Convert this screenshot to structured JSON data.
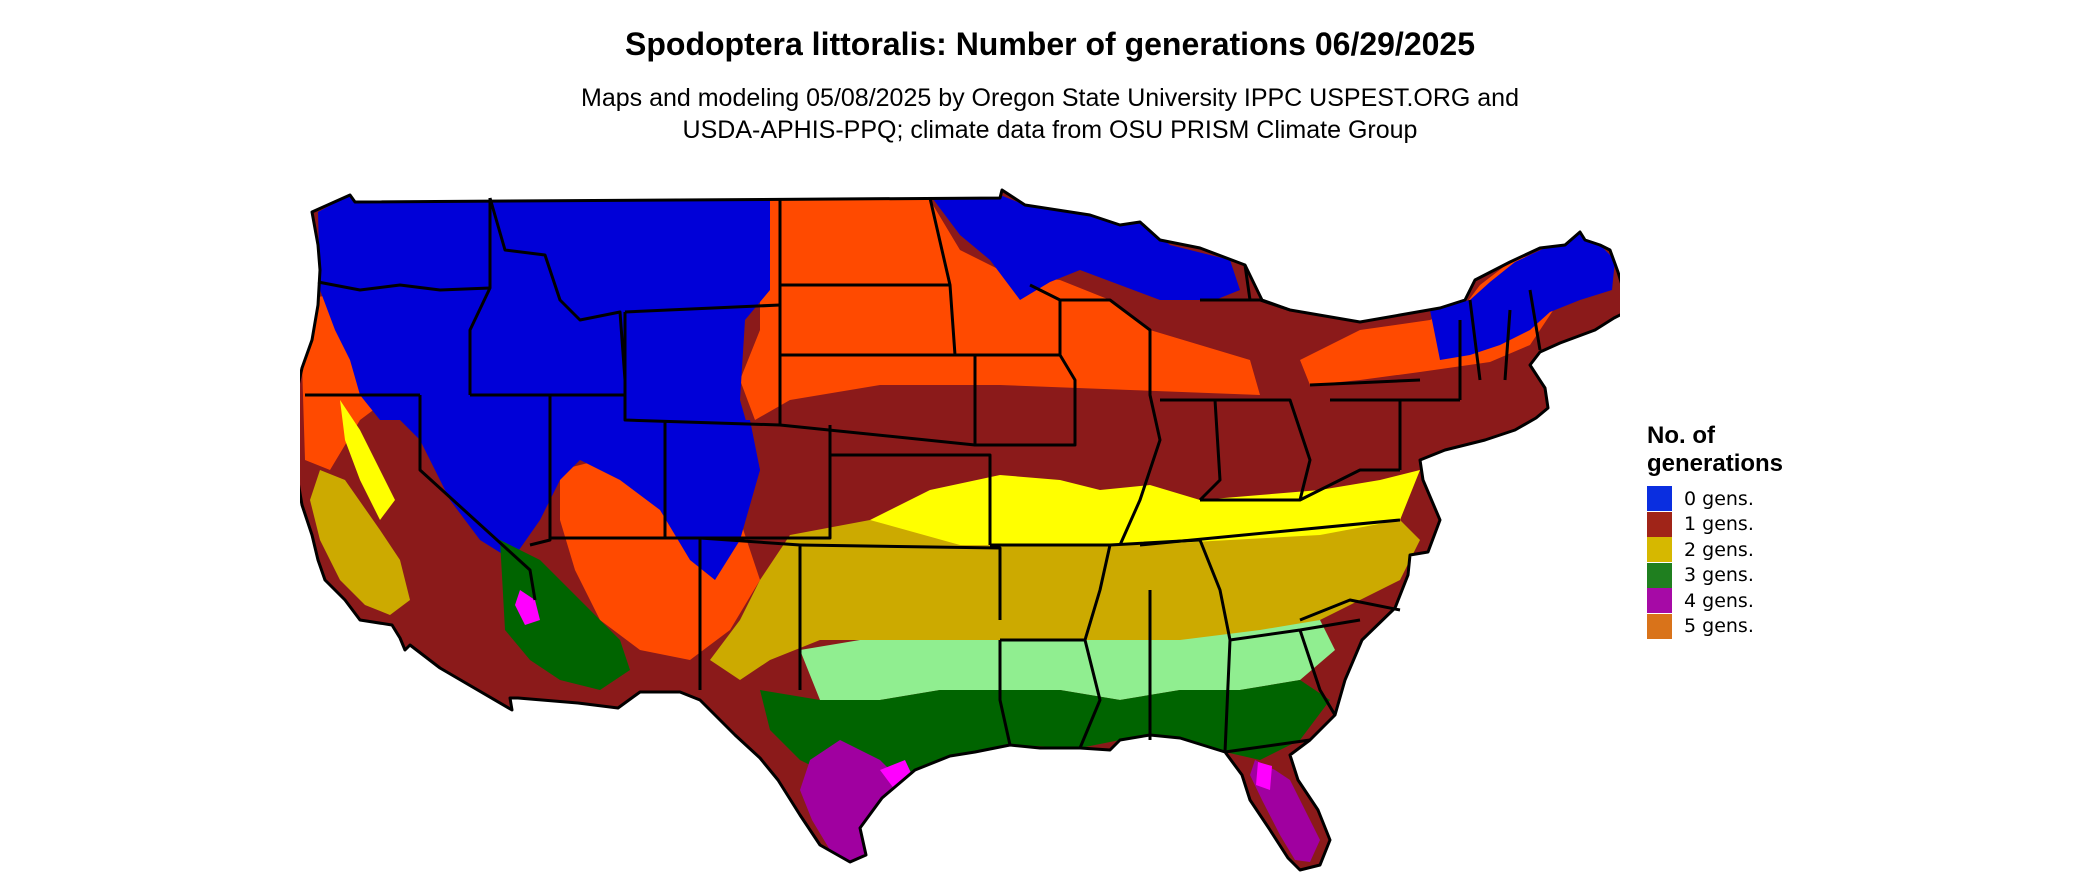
{
  "title": "Spodoptera littoralis: Number of generations 06/29/2025",
  "subtitle": {
    "line1": "Maps and modeling 05/08/2025 by Oregon State University IPPC USPEST.ORG and",
    "line2": "USDA-APHIS-PPQ; climate data from OSU PRISM Climate Group"
  },
  "legend": {
    "title_line1": "No. of",
    "title_line2": "generations",
    "items": [
      {
        "label": "0 gens.",
        "color": "#0a2ee0"
      },
      {
        "label": "1 gens.",
        "color": "#a02418"
      },
      {
        "label": "2 gens.",
        "color": "#d6b800"
      },
      {
        "label": "3 gens.",
        "color": "#1f7f1f"
      },
      {
        "label": "4 gens.",
        "color": "#a60aa6"
      },
      {
        "label": "5 gens.",
        "color": "#d9731a"
      }
    ]
  },
  "map_colors": {
    "zero_gens": "#0000d8",
    "one_gen_early": "#ff4a00",
    "one_gen": "#8b1a1a",
    "two_gens_light": "#ffff00",
    "two_gens": "#ccaa00",
    "three_gens_light": "#90ee90",
    "three_gens": "#006400",
    "four_gens": "#a000a0",
    "four_gens_light": "#ff00ff",
    "five_gens": "#ff6a00",
    "state_border": "#000000"
  }
}
